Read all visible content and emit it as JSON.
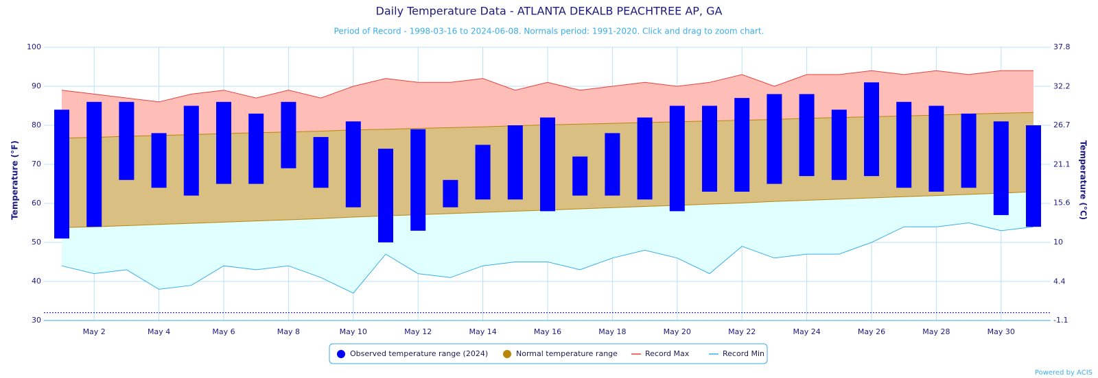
{
  "chart_data": {
    "type": "range",
    "title": "Daily Temperature Data - ATLANTA DEKALB PEACHTREE AP, GA",
    "subtitle": "Period of Record - 1998-03-16 to 2024-06-08. Normals period: 1991-2020. Click and drag to zoom chart.",
    "ylabel": "Temperature (°F)",
    "y2label": "Temperature (°C)",
    "credit": "Powered by ACIS",
    "categories": [
      null,
      "May 2",
      null,
      "May 4",
      null,
      "May 6",
      null,
      "May 8",
      null,
      "May 10",
      null,
      "May 12",
      null,
      "May 14",
      null,
      "May 16",
      null,
      "May 18",
      null,
      "May 20",
      null,
      "May 22",
      null,
      "May 24",
      null,
      "May 26",
      null,
      "May 28",
      null,
      "May 30",
      null
    ],
    "ylim": [
      30,
      100
    ],
    "yticks": [
      30,
      40,
      50,
      60,
      70,
      80,
      90,
      100
    ],
    "y2lim": [
      -1.1,
      37.8
    ],
    "y2ticks": [
      -1.1,
      4.4,
      10,
      15.6,
      21.1,
      26.7,
      32.2,
      37.8
    ],
    "freezing_line": 32,
    "grid": true,
    "legend": "bottom",
    "series": [
      {
        "name": "Observed temperature range (2024)",
        "color": "#0000ff",
        "low": [
          51,
          54,
          66,
          64,
          62,
          65,
          65,
          69,
          64,
          59,
          50,
          53,
          59,
          61,
          61,
          58,
          62,
          62,
          61,
          58,
          63,
          63,
          65,
          67,
          66,
          67,
          64,
          63,
          64,
          57,
          54
        ],
        "high": [
          84,
          86,
          86,
          78,
          85,
          86,
          83,
          86,
          77,
          81,
          74,
          79,
          66,
          75,
          80,
          82,
          72,
          78,
          82,
          85,
          85,
          87,
          88,
          88,
          84,
          91,
          86,
          85,
          83,
          81,
          80
        ]
      },
      {
        "name": "Normal temperature range",
        "color": "#b8860b",
        "low": [
          53.8,
          54.0,
          54.3,
          54.6,
          54.9,
          55.2,
          55.5,
          55.8,
          56.1,
          56.5,
          56.8,
          57.1,
          57.4,
          57.7,
          58.0,
          58.3,
          58.6,
          58.9,
          59.2,
          59.5,
          59.8,
          60.1,
          60.5,
          60.8,
          61.1,
          61.4,
          61.7,
          62.0,
          62.3,
          62.6,
          63.0
        ],
        "high": [
          76.7,
          76.9,
          77.2,
          77.4,
          77.6,
          77.9,
          78.1,
          78.3,
          78.5,
          78.8,
          79.0,
          79.2,
          79.4,
          79.6,
          79.9,
          80.1,
          80.3,
          80.5,
          80.7,
          80.9,
          81.1,
          81.3,
          81.5,
          81.8,
          82.0,
          82.2,
          82.4,
          82.6,
          82.9,
          83.1,
          83.3
        ]
      },
      {
        "name": "Record Max",
        "color": "#e8403a",
        "values": [
          89,
          88,
          87,
          86,
          88,
          89,
          87,
          89,
          87,
          90,
          92,
          91,
          91,
          92,
          89,
          91,
          89,
          90,
          91,
          90,
          91,
          93,
          90,
          93,
          93,
          94,
          93,
          94,
          93,
          94,
          94
        ]
      },
      {
        "name": "Record Min",
        "color": "#3aaee8",
        "values": [
          44,
          42,
          43,
          38,
          39,
          44,
          43,
          44,
          41,
          37,
          47,
          42,
          41,
          44,
          45,
          45,
          43,
          46,
          48,
          46,
          42,
          49,
          46,
          47,
          47,
          50,
          54,
          54,
          55,
          53,
          54
        ]
      }
    ]
  }
}
